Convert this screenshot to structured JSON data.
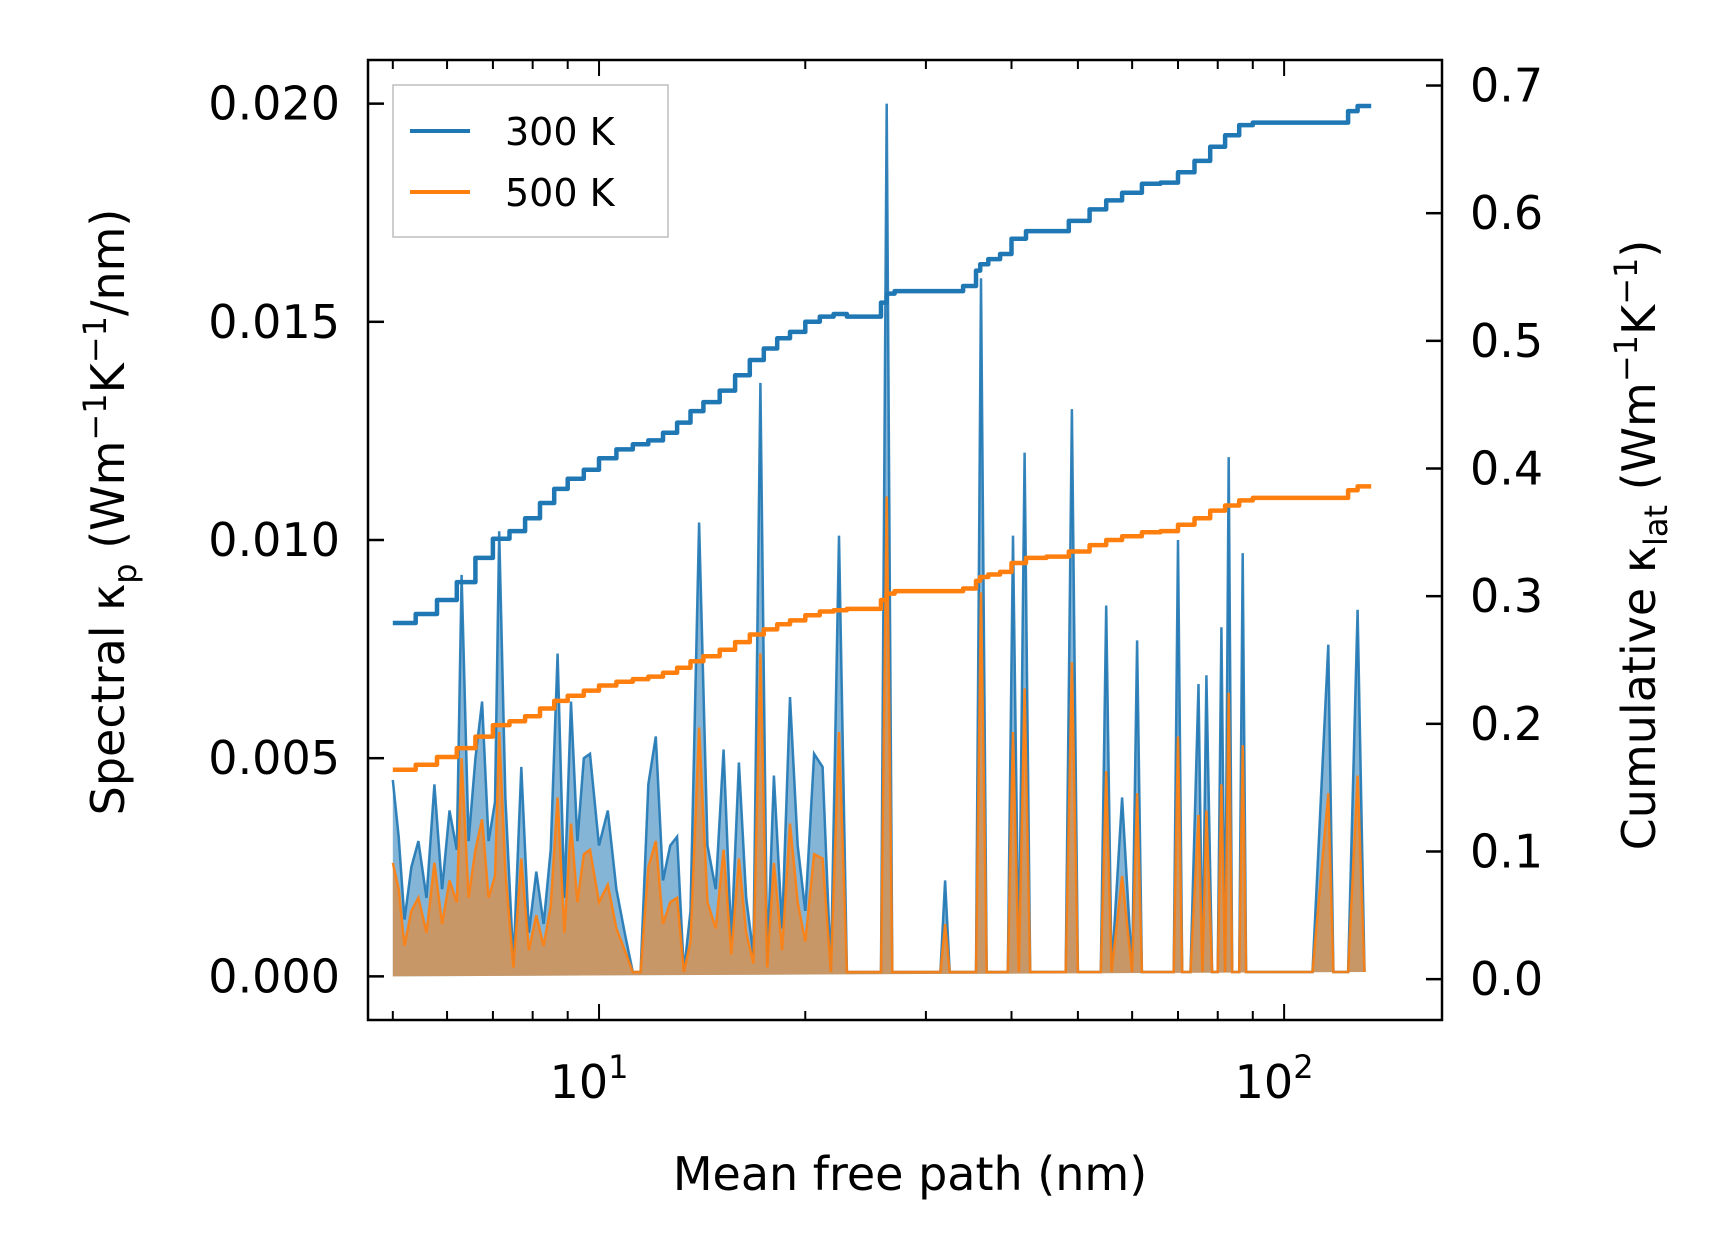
{
  "chart_data": {
    "type": "line",
    "title": "",
    "xlabel": "Mean free path (nm)",
    "ylabel_left": {
      "base": "Spectral κ",
      "sub": "p",
      "unit_open": " (Wm",
      "sup1": "−1",
      "mid": "K",
      "sup2": "−1",
      "unit_close": "/nm)"
    },
    "ylabel_right": {
      "base": "Cumulative κ",
      "sub": "lat",
      "unit_open": " (Wm",
      "sup1": "−1",
      "mid": "K",
      "sup2": "−1",
      "unit_close": ")"
    },
    "x_scale": "log",
    "xlim": [
      4.6,
      170
    ],
    "ylim_left": [
      -0.001,
      0.021
    ],
    "ylim_right": [
      -0.032,
      0.72
    ],
    "x_ticks": [
      {
        "value": 10,
        "base": "10",
        "exp": "1"
      },
      {
        "value": 100,
        "base": "10",
        "exp": "2"
      }
    ],
    "y_ticks_left": [
      "0.000",
      "0.005",
      "0.010",
      "0.015",
      "0.020"
    ],
    "y_ticks_right": [
      "0.0",
      "0.1",
      "0.2",
      "0.3",
      "0.4",
      "0.5",
      "0.6",
      "0.7"
    ],
    "legend": {
      "position": "upper-left",
      "entries": [
        {
          "label": "300 K",
          "color": "#1f77b4"
        },
        {
          "label": "500 K",
          "color": "#ff7f0e"
        }
      ]
    },
    "spectral_x": [
      5,
      5.1,
      5.2,
      5.32,
      5.45,
      5.6,
      5.75,
      5.9,
      6.05,
      6.2,
      6.3,
      6.45,
      6.6,
      6.75,
      6.9,
      7.05,
      7.15,
      7.3,
      7.5,
      7.7,
      7.9,
      8.1,
      8.3,
      8.5,
      8.7,
      8.9,
      9.1,
      9.3,
      9.5,
      9.7,
      10.0,
      10.3,
      10.6,
      10.9,
      11.2,
      11.5,
      11.8,
      12.1,
      12.4,
      12.7,
      13.0,
      13.3,
      13.6,
      14.0,
      14.4,
      14.8,
      15.2,
      15.6,
      16.0,
      16.4,
      16.8,
      17.2,
      17.6,
      18.0,
      18.5,
      19.0,
      19.5,
      20.0,
      20.6,
      21.2,
      21.8,
      22.4,
      23.0,
      24.0,
      25.0,
      25.8,
      26.3,
      26.8,
      28.0,
      30.0,
      31.5,
      32.0,
      32.5,
      34.0,
      35.5,
      36.1,
      36.8,
      38.0,
      39.5,
      40.2,
      41.0,
      41.8,
      42.6,
      45.0,
      48.0,
      49.0,
      50.0,
      52.0,
      54.0,
      55.0,
      56.0,
      58.0,
      60.0,
      61.0,
      62.0,
      66.0,
      69.0,
      70.0,
      71.0,
      73.0,
      75.0,
      76.0,
      77.0,
      78.5,
      80.0,
      81.0,
      82.0,
      83.0,
      84.0,
      85.0,
      86.0,
      87.0,
      88.0,
      89.0,
      90.0,
      100,
      110,
      116,
      118,
      120,
      124,
      128,
      131,
      134
    ],
    "series": [
      {
        "name": "300 K",
        "color": "#1f77b4",
        "spectral": [
          0.0045,
          0.0032,
          0.0013,
          0.0025,
          0.0031,
          0.0018,
          0.0044,
          0.002,
          0.0038,
          0.0029,
          0.0092,
          0.0031,
          0.005,
          0.0063,
          0.0031,
          0.004,
          0.0102,
          0.0041,
          0.0003,
          0.0048,
          0.001,
          0.0024,
          0.0012,
          0.0029,
          0.0074,
          0.0018,
          0.0063,
          0.0031,
          0.005,
          0.0051,
          0.003,
          0.0038,
          0.002,
          0.001,
          0.0001,
          0.0001,
          0.0044,
          0.0055,
          0.0022,
          0.003,
          0.0032,
          0.0001,
          0.0015,
          0.0104,
          0.003,
          0.002,
          0.0052,
          0.0008,
          0.0049,
          0.0018,
          0.0005,
          0.0136,
          0.0003,
          0.0046,
          0.0011,
          0.0064,
          0.003,
          0.0015,
          0.0051,
          0.0048,
          0.0001,
          0.0101,
          0.0001,
          0.0001,
          0.0001,
          0.0001,
          0.02,
          0.0001,
          0.0001,
          0.0001,
          0.0001,
          0.0022,
          0.0001,
          0.0001,
          0.0001,
          0.016,
          0.0001,
          0.0001,
          0.0001,
          0.0101,
          0.0001,
          0.012,
          0.0001,
          0.0001,
          0.0001,
          0.013,
          0.0001,
          0.0001,
          0.0001,
          0.0085,
          0.0001,
          0.0041,
          0.0001,
          0.0077,
          0.0001,
          0.0001,
          0.0001,
          0.01,
          0.0001,
          0.0001,
          0.0067,
          0.0001,
          0.0069,
          0.0001,
          0.0001,
          0.008,
          0.0001,
          0.0119,
          0.0001,
          0.0001,
          0.0001,
          0.0097,
          0.0001,
          0.0001,
          0.0001,
          0.0001,
          0.0001,
          0.0076,
          0.0001,
          0.0001,
          0.0001,
          0.0084,
          0.0001
        ],
        "cumulative_x": [
          5.0,
          5.4,
          5.8,
          6.2,
          6.6,
          7.0,
          7.4,
          7.8,
          8.2,
          8.6,
          9.0,
          9.5,
          10.0,
          10.6,
          11.2,
          11.8,
          12.4,
          13.0,
          13.6,
          14.2,
          15.0,
          15.8,
          16.6,
          17.4,
          18.2,
          19.0,
          20.0,
          21.0,
          22.0,
          23.0,
          25.8,
          26.3,
          27.0,
          32.0,
          34.0,
          35.5,
          36.0,
          37.0,
          38.5,
          40.0,
          42.0,
          45.0,
          48.5,
          49.0,
          52.0,
          55.0,
          58.0,
          62.0,
          66.0,
          70.0,
          74.0,
          78.0,
          82.0,
          86.0,
          90.0,
          100,
          110,
          120,
          124,
          128,
          134
        ],
        "cumulative": [
          0.279,
          0.286,
          0.297,
          0.311,
          0.33,
          0.345,
          0.351,
          0.361,
          0.373,
          0.384,
          0.392,
          0.399,
          0.408,
          0.415,
          0.419,
          0.422,
          0.428,
          0.436,
          0.445,
          0.452,
          0.461,
          0.473,
          0.485,
          0.494,
          0.502,
          0.507,
          0.515,
          0.519,
          0.521,
          0.519,
          0.53,
          0.537,
          0.539,
          0.539,
          0.543,
          0.555,
          0.56,
          0.564,
          0.568,
          0.58,
          0.586,
          0.586,
          0.594,
          0.594,
          0.603,
          0.61,
          0.616,
          0.623,
          0.624,
          0.632,
          0.641,
          0.652,
          0.661,
          0.669,
          0.671,
          0.671,
          0.671,
          0.671,
          0.68,
          0.684,
          0.684
        ]
      },
      {
        "name": "500 K",
        "color": "#ff7f0e",
        "spectral": [
          0.0026,
          0.002,
          0.0007,
          0.0015,
          0.0018,
          0.001,
          0.0026,
          0.0012,
          0.0022,
          0.0017,
          0.005,
          0.0018,
          0.0029,
          0.0036,
          0.0018,
          0.0023,
          0.0056,
          0.0024,
          0.0002,
          0.0027,
          0.0006,
          0.0014,
          0.0007,
          0.0016,
          0.0041,
          0.001,
          0.0035,
          0.0017,
          0.0028,
          0.0029,
          0.0017,
          0.0021,
          0.0011,
          0.0006,
          0.0001,
          0.0001,
          0.0025,
          0.0031,
          0.0012,
          0.0017,
          0.0018,
          0.0001,
          0.0008,
          0.0057,
          0.0017,
          0.0011,
          0.0029,
          0.0005,
          0.0027,
          0.001,
          0.0003,
          0.0074,
          0.0002,
          0.0026,
          0.0006,
          0.0035,
          0.0017,
          0.0008,
          0.0028,
          0.0027,
          0.0001,
          0.0056,
          0.0001,
          0.0001,
          0.0001,
          0.0001,
          0.011,
          0.0001,
          0.0001,
          0.0001,
          0.0001,
          0.0012,
          0.0001,
          0.0001,
          0.0001,
          0.0088,
          0.0001,
          0.0001,
          0.0001,
          0.0056,
          0.0001,
          0.0066,
          0.0001,
          0.0001,
          0.0001,
          0.0072,
          0.0001,
          0.0001,
          0.0001,
          0.0047,
          0.0001,
          0.0023,
          0.0001,
          0.0042,
          0.0001,
          0.0001,
          0.0001,
          0.0055,
          0.0001,
          0.0001,
          0.0037,
          0.0001,
          0.0038,
          0.0001,
          0.0001,
          0.0044,
          0.0001,
          0.0065,
          0.0001,
          0.0001,
          0.0001,
          0.0053,
          0.0001,
          0.0001,
          0.0001,
          0.0001,
          0.0001,
          0.0042,
          0.0001,
          0.0001,
          0.0001,
          0.0046,
          0.0001
        ],
        "cumulative_x": [
          5.0,
          5.4,
          5.8,
          6.2,
          6.6,
          7.0,
          7.4,
          7.8,
          8.2,
          8.6,
          9.0,
          9.5,
          10.0,
          10.6,
          11.2,
          11.8,
          12.4,
          13.0,
          13.6,
          14.2,
          15.0,
          15.8,
          16.6,
          17.4,
          18.2,
          19.0,
          20.0,
          21.0,
          22.0,
          23.0,
          25.8,
          26.3,
          27.0,
          32.0,
          34.0,
          35.5,
          36.0,
          37.0,
          38.5,
          40.0,
          42.0,
          45.0,
          48.5,
          49.0,
          52.0,
          55.0,
          58.0,
          62.0,
          66.0,
          70.0,
          74.0,
          78.0,
          82.0,
          86.0,
          90.0,
          100,
          110,
          120,
          124,
          128,
          134
        ],
        "cumulative": [
          0.164,
          0.168,
          0.174,
          0.181,
          0.19,
          0.199,
          0.202,
          0.206,
          0.212,
          0.218,
          0.222,
          0.226,
          0.23,
          0.233,
          0.235,
          0.237,
          0.24,
          0.244,
          0.249,
          0.253,
          0.258,
          0.264,
          0.27,
          0.274,
          0.278,
          0.281,
          0.285,
          0.288,
          0.289,
          0.29,
          0.297,
          0.302,
          0.304,
          0.304,
          0.306,
          0.312,
          0.315,
          0.317,
          0.319,
          0.326,
          0.33,
          0.331,
          0.335,
          0.335,
          0.34,
          0.344,
          0.347,
          0.35,
          0.351,
          0.356,
          0.361,
          0.367,
          0.371,
          0.375,
          0.377,
          0.377,
          0.377,
          0.377,
          0.383,
          0.386,
          0.386
        ]
      }
    ]
  }
}
